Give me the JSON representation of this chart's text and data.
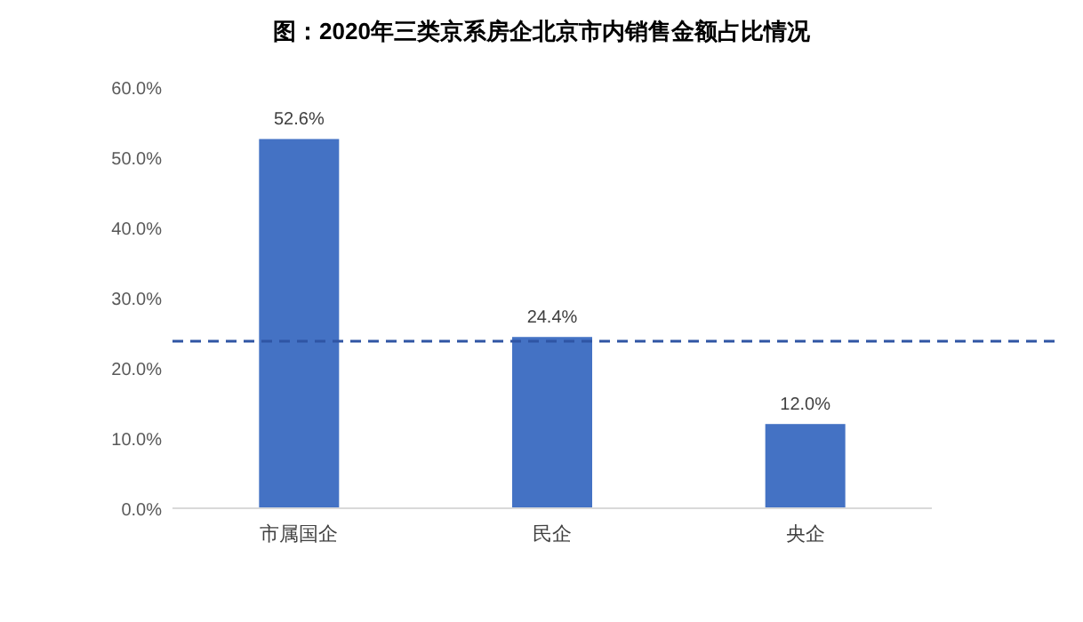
{
  "chart_data": {
    "type": "bar",
    "title": "图：2020年三类京系房企北京市内销售金额占比情况",
    "categories": [
      "市属国企",
      "民企",
      "央企"
    ],
    "values": [
      52.6,
      24.4,
      12.0
    ],
    "value_labels": [
      "52.6%",
      "24.4%",
      "12.0%"
    ],
    "color": "#4472c4",
    "ylim": [
      0,
      60
    ],
    "yticks": [
      {
        "value": 0,
        "label": "0.0%"
      },
      {
        "value": 10,
        "label": "10.0%"
      },
      {
        "value": 20,
        "label": "20.0%"
      },
      {
        "value": 30,
        "label": "30.0%"
      },
      {
        "value": 40,
        "label": "40.0%"
      },
      {
        "value": 50,
        "label": "50.0%"
      },
      {
        "value": 60,
        "label": "60.0%"
      }
    ],
    "ref_lines": [
      {
        "axis": "y",
        "value": 23.8,
        "color": "#2f55a4",
        "line_style": "dashed"
      }
    ],
    "grid": false
  }
}
